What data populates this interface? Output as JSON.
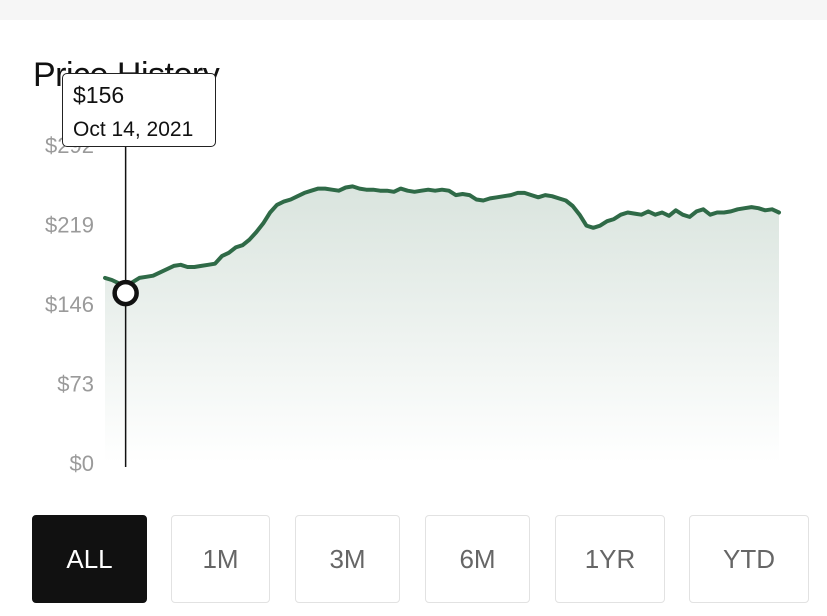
{
  "title": "Price History",
  "tooltip": {
    "price": "$156",
    "date": "Oct 14, 2021"
  },
  "ranges": [
    "ALL",
    "1M",
    "3M",
    "6M",
    "1YR",
    "YTD"
  ],
  "selected_range": "ALL",
  "colors": {
    "line": "#2f6a47",
    "accent": "#111111",
    "axis_label": "#9a9a9a"
  },
  "chart_data": {
    "type": "area",
    "ylim": [
      0,
      292
    ],
    "y_ticks": [
      {
        "value": 0,
        "label": "$0"
      },
      {
        "value": 73,
        "label": "$73"
      },
      {
        "value": 146,
        "label": "$146"
      },
      {
        "value": 219,
        "label": "$219"
      },
      {
        "value": 292,
        "label": "$292"
      }
    ],
    "highlight": {
      "index": 3,
      "value": 156,
      "label": "$156",
      "date": "Oct 14, 2021"
    },
    "series": [
      {
        "values": [
          170,
          168,
          165,
          156,
          166,
          170,
          171,
          172,
          175,
          178,
          181,
          182,
          180,
          180,
          181,
          182,
          183,
          190,
          193,
          198,
          200,
          205,
          212,
          220,
          230,
          237,
          240,
          242,
          245,
          248,
          250,
          252,
          252,
          251,
          250,
          253,
          254,
          252,
          251,
          251,
          250,
          250,
          249,
          252,
          250,
          249,
          250,
          251,
          250,
          251,
          250,
          246,
          247,
          246,
          242,
          241,
          243,
          244,
          245,
          246,
          248,
          248,
          246,
          244,
          246,
          245,
          243,
          241,
          236,
          228,
          218,
          216,
          218,
          222,
          224,
          228,
          230,
          229,
          228,
          231,
          228,
          230,
          227,
          232,
          228,
          226,
          231,
          233,
          228,
          230,
          230,
          231,
          233,
          234,
          235,
          234,
          232,
          233,
          230
        ]
      }
    ]
  }
}
